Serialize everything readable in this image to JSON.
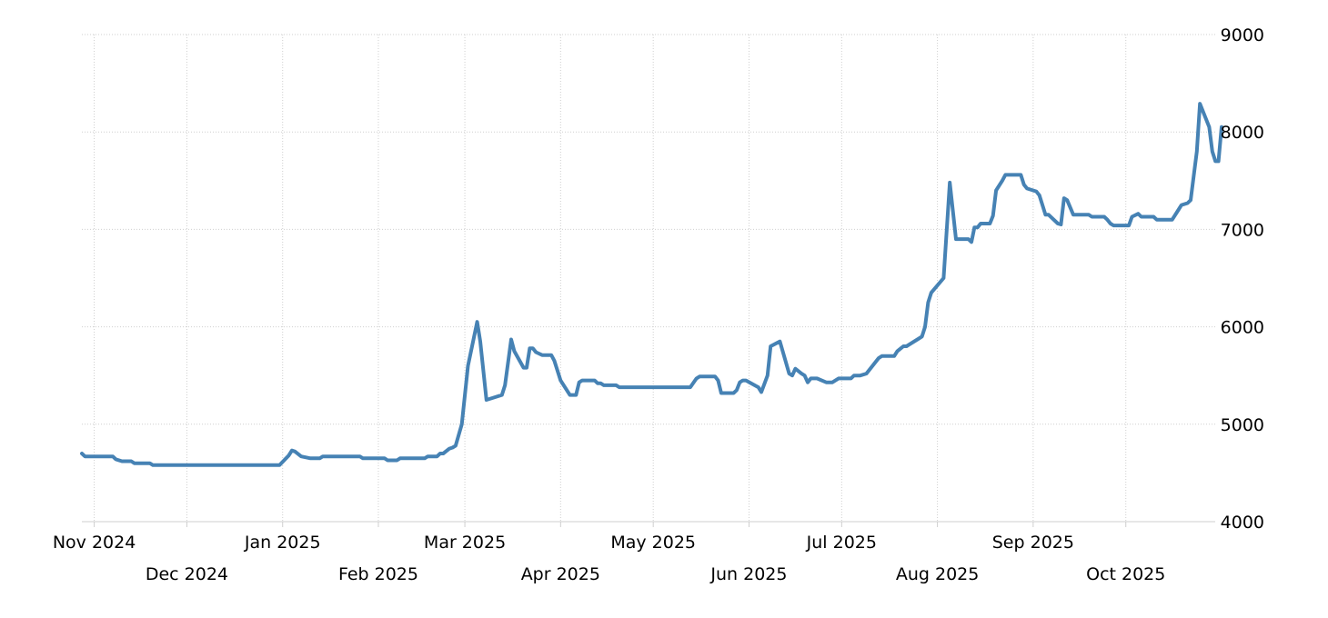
{
  "chart_data": {
    "type": "line",
    "title": "",
    "xlabel": "",
    "ylabel": "",
    "ylim": [
      4000,
      9000
    ],
    "xlim": [
      "2024-10-28",
      "2025-10-30"
    ],
    "y_axis_position": "right",
    "grid": true,
    "legend": "none",
    "line_color": "#4682b4",
    "y_ticks": [
      "4000",
      "5000",
      "6000",
      "7000",
      "8000",
      "9000"
    ],
    "x_ticks": [
      {
        "date": "2024-11-01",
        "label": "Nov 2024",
        "row": 1
      },
      {
        "date": "2024-12-01",
        "label": "Dec 2024",
        "row": 2
      },
      {
        "date": "2025-01-01",
        "label": "Jan 2025",
        "row": 1
      },
      {
        "date": "2025-02-01",
        "label": "Feb 2025",
        "row": 2
      },
      {
        "date": "2025-03-01",
        "label": "Mar 2025",
        "row": 1
      },
      {
        "date": "2025-04-01",
        "label": "Apr 2025",
        "row": 2
      },
      {
        "date": "2025-05-01",
        "label": "May 2025",
        "row": 1
      },
      {
        "date": "2025-06-01",
        "label": "Jun 2025",
        "row": 2
      },
      {
        "date": "2025-07-01",
        "label": "Jul 2025",
        "row": 1
      },
      {
        "date": "2025-08-01",
        "label": "Aug 2025",
        "row": 2
      },
      {
        "date": "2025-09-01",
        "label": "Sep 2025",
        "row": 1
      },
      {
        "date": "2025-10-01",
        "label": "Oct 2025",
        "row": 2
      }
    ],
    "series": [
      {
        "points": [
          [
            "2024-10-28",
            4700
          ],
          [
            "2024-10-29",
            4670
          ],
          [
            "2024-11-07",
            4670
          ],
          [
            "2024-11-08",
            4640
          ],
          [
            "2024-11-10",
            4620
          ],
          [
            "2024-11-13",
            4620
          ],
          [
            "2024-11-14",
            4600
          ],
          [
            "2024-11-19",
            4600
          ],
          [
            "2024-11-20",
            4580
          ],
          [
            "2024-12-31",
            4580
          ],
          [
            "2025-01-03",
            4680
          ],
          [
            "2025-01-04",
            4730
          ],
          [
            "2025-01-05",
            4720
          ],
          [
            "2025-01-07",
            4670
          ],
          [
            "2025-01-10",
            4650
          ],
          [
            "2025-01-13",
            4650
          ],
          [
            "2025-01-14",
            4670
          ],
          [
            "2025-01-26",
            4670
          ],
          [
            "2025-01-27",
            4650
          ],
          [
            "2025-02-03",
            4650
          ],
          [
            "2025-02-04",
            4630
          ],
          [
            "2025-02-07",
            4630
          ],
          [
            "2025-02-08",
            4650
          ],
          [
            "2025-02-16",
            4650
          ],
          [
            "2025-02-17",
            4670
          ],
          [
            "2025-02-20",
            4670
          ],
          [
            "2025-02-21",
            4700
          ],
          [
            "2025-02-22",
            4700
          ],
          [
            "2025-02-24",
            4750
          ],
          [
            "2025-02-25",
            4760
          ],
          [
            "2025-02-26",
            4780
          ],
          [
            "2025-02-28",
            5000
          ],
          [
            "2025-03-02",
            5600
          ],
          [
            "2025-03-05",
            6050
          ],
          [
            "2025-03-06",
            5850
          ],
          [
            "2025-03-08",
            5250
          ],
          [
            "2025-03-10",
            5270
          ],
          [
            "2025-03-13",
            5300
          ],
          [
            "2025-03-14",
            5400
          ],
          [
            "2025-03-16",
            5870
          ],
          [
            "2025-03-17",
            5750
          ],
          [
            "2025-03-20",
            5580
          ],
          [
            "2025-03-21",
            5580
          ],
          [
            "2025-03-22",
            5780
          ],
          [
            "2025-03-23",
            5780
          ],
          [
            "2025-03-24",
            5740
          ],
          [
            "2025-03-26",
            5710
          ],
          [
            "2025-03-29",
            5710
          ],
          [
            "2025-03-30",
            5650
          ],
          [
            "2025-04-01",
            5450
          ],
          [
            "2025-04-04",
            5300
          ],
          [
            "2025-04-06",
            5300
          ],
          [
            "2025-04-07",
            5430
          ],
          [
            "2025-04-08",
            5450
          ],
          [
            "2025-04-12",
            5450
          ],
          [
            "2025-04-13",
            5420
          ],
          [
            "2025-04-14",
            5420
          ],
          [
            "2025-04-15",
            5400
          ],
          [
            "2025-04-19",
            5400
          ],
          [
            "2025-04-20",
            5380
          ],
          [
            "2025-05-13",
            5380
          ],
          [
            "2025-05-15",
            5470
          ],
          [
            "2025-05-16",
            5490
          ],
          [
            "2025-05-21",
            5490
          ],
          [
            "2025-05-22",
            5450
          ],
          [
            "2025-05-23",
            5320
          ],
          [
            "2025-05-27",
            5320
          ],
          [
            "2025-05-28",
            5350
          ],
          [
            "2025-05-29",
            5430
          ],
          [
            "2025-05-30",
            5450
          ],
          [
            "2025-05-31",
            5450
          ],
          [
            "2025-06-04",
            5380
          ],
          [
            "2025-06-05",
            5330
          ],
          [
            "2025-06-07",
            5500
          ],
          [
            "2025-06-08",
            5800
          ],
          [
            "2025-06-11",
            5850
          ],
          [
            "2025-06-14",
            5520
          ],
          [
            "2025-06-15",
            5500
          ],
          [
            "2025-06-16",
            5570
          ],
          [
            "2025-06-18",
            5520
          ],
          [
            "2025-06-19",
            5500
          ],
          [
            "2025-06-20",
            5430
          ],
          [
            "2025-06-21",
            5470
          ],
          [
            "2025-06-23",
            5470
          ],
          [
            "2025-06-26",
            5430
          ],
          [
            "2025-06-28",
            5430
          ],
          [
            "2025-06-30",
            5470
          ],
          [
            "2025-07-04",
            5470
          ],
          [
            "2025-07-05",
            5500
          ],
          [
            "2025-07-07",
            5500
          ],
          [
            "2025-07-09",
            5520
          ],
          [
            "2025-07-11",
            5600
          ],
          [
            "2025-07-13",
            5680
          ],
          [
            "2025-07-14",
            5700
          ],
          [
            "2025-07-18",
            5700
          ],
          [
            "2025-07-19",
            5750
          ],
          [
            "2025-07-21",
            5800
          ],
          [
            "2025-07-22",
            5800
          ],
          [
            "2025-07-26",
            5880
          ],
          [
            "2025-07-27",
            5900
          ],
          [
            "2025-07-28",
            6000
          ],
          [
            "2025-07-29",
            6250
          ],
          [
            "2025-07-30",
            6350
          ],
          [
            "2025-08-03",
            6500
          ],
          [
            "2025-08-05",
            7480
          ],
          [
            "2025-08-07",
            6900
          ],
          [
            "2025-08-11",
            6900
          ],
          [
            "2025-08-12",
            6870
          ],
          [
            "2025-08-13",
            7020
          ],
          [
            "2025-08-14",
            7020
          ],
          [
            "2025-08-15",
            7060
          ],
          [
            "2025-08-18",
            7060
          ],
          [
            "2025-08-19",
            7140
          ],
          [
            "2025-08-20",
            7400
          ],
          [
            "2025-08-22",
            7500
          ],
          [
            "2025-08-23",
            7560
          ],
          [
            "2025-08-28",
            7560
          ],
          [
            "2025-08-29",
            7460
          ],
          [
            "2025-08-30",
            7420
          ],
          [
            "2025-09-02",
            7390
          ],
          [
            "2025-09-03",
            7350
          ],
          [
            "2025-09-05",
            7150
          ],
          [
            "2025-09-06",
            7150
          ],
          [
            "2025-09-09",
            7060
          ],
          [
            "2025-09-10",
            7050
          ],
          [
            "2025-09-11",
            7320
          ],
          [
            "2025-09-12",
            7300
          ],
          [
            "2025-09-14",
            7150
          ],
          [
            "2025-09-19",
            7150
          ],
          [
            "2025-09-20",
            7130
          ],
          [
            "2025-09-24",
            7130
          ],
          [
            "2025-09-25",
            7100
          ],
          [
            "2025-09-26",
            7060
          ],
          [
            "2025-09-27",
            7040
          ],
          [
            "2025-09-29",
            7040
          ],
          [
            "2025-10-02",
            7040
          ],
          [
            "2025-10-03",
            7130
          ],
          [
            "2025-10-05",
            7160
          ],
          [
            "2025-10-06",
            7130
          ],
          [
            "2025-10-10",
            7130
          ],
          [
            "2025-10-11",
            7100
          ],
          [
            "2025-10-16",
            7100
          ],
          [
            "2025-10-18",
            7200
          ],
          [
            "2025-10-19",
            7250
          ],
          [
            "2025-10-21",
            7270
          ],
          [
            "2025-10-22",
            7300
          ],
          [
            "2025-10-23",
            7550
          ],
          [
            "2025-10-24",
            7800
          ],
          [
            "2025-10-25",
            8290
          ],
          [
            "2025-10-28",
            8050
          ],
          [
            "2025-10-29",
            7800
          ],
          [
            "2025-10-30",
            7700
          ],
          [
            "2025-10-31",
            7700
          ],
          [
            "2025-11-01",
            8050
          ]
        ]
      }
    ]
  }
}
